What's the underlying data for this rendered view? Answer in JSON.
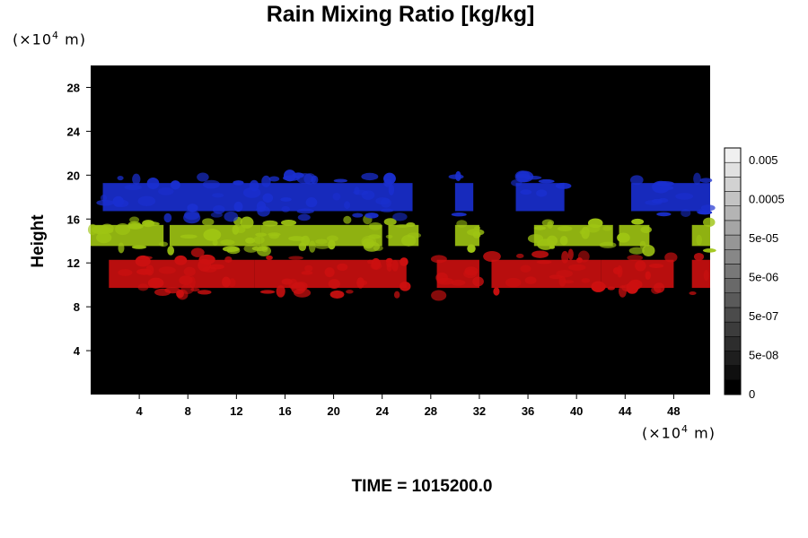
{
  "title": "Rain Mixing Ratio [kg/kg]",
  "y_unit": {
    "prefix": "(×10",
    "exp": "4",
    "suffix": " m)"
  },
  "x_unit": {
    "prefix": "(×10",
    "exp": "4",
    "suffix": " m)"
  },
  "ylabel": "Height",
  "time_label": "TIME = 1015200.0",
  "colors": {
    "background": "#000000",
    "upper_layer": "#1a2fd0",
    "middle_layer": "#9ec413",
    "lower_layer": "#cc1010",
    "green_fringe": "#1f8a12"
  },
  "colorbar": {
    "labels": [
      "0.005",
      "0.0005",
      "5e-05",
      "5e-06",
      "5e-07",
      "5e-08",
      "0"
    ],
    "levels": 17,
    "gray_min": "#000000",
    "gray_max": "#f0f0f0"
  },
  "chart_data": {
    "type": "heatmap",
    "title": "Rain Mixing Ratio [kg/kg]",
    "xlabel": "",
    "ylabel": "Height",
    "xlim": [
      0,
      51
    ],
    "ylim": [
      0,
      30
    ],
    "xticks": [
      "4",
      "8",
      "12",
      "16",
      "20",
      "24",
      "28",
      "32",
      "36",
      "40",
      "44",
      "48"
    ],
    "yticks": [
      "4",
      "8",
      "12",
      "16",
      "20",
      "24",
      "28"
    ],
    "layers": [
      {
        "color": "lower_layer",
        "height_range": [
          9,
          13
        ],
        "segments": [
          [
            1.5,
            13.5
          ],
          [
            13.5,
            26
          ],
          [
            28.5,
            32
          ],
          [
            33,
            42
          ],
          [
            42,
            48
          ],
          [
            49.5,
            51
          ]
        ]
      },
      {
        "color": "middle_layer",
        "height_range": [
          13,
          16
        ],
        "segments": [
          [
            0,
            6
          ],
          [
            6.5,
            14
          ],
          [
            14,
            24
          ],
          [
            24.5,
            27
          ],
          [
            30,
            32
          ],
          [
            36.5,
            43
          ],
          [
            43.5,
            46
          ],
          [
            49.5,
            51
          ]
        ]
      },
      {
        "color": "upper_layer",
        "height_range": [
          16,
          20
        ],
        "segments": [
          [
            1,
            26.5
          ],
          [
            30,
            31.5
          ],
          [
            35,
            39
          ],
          [
            44.5,
            51
          ]
        ]
      }
    ]
  }
}
